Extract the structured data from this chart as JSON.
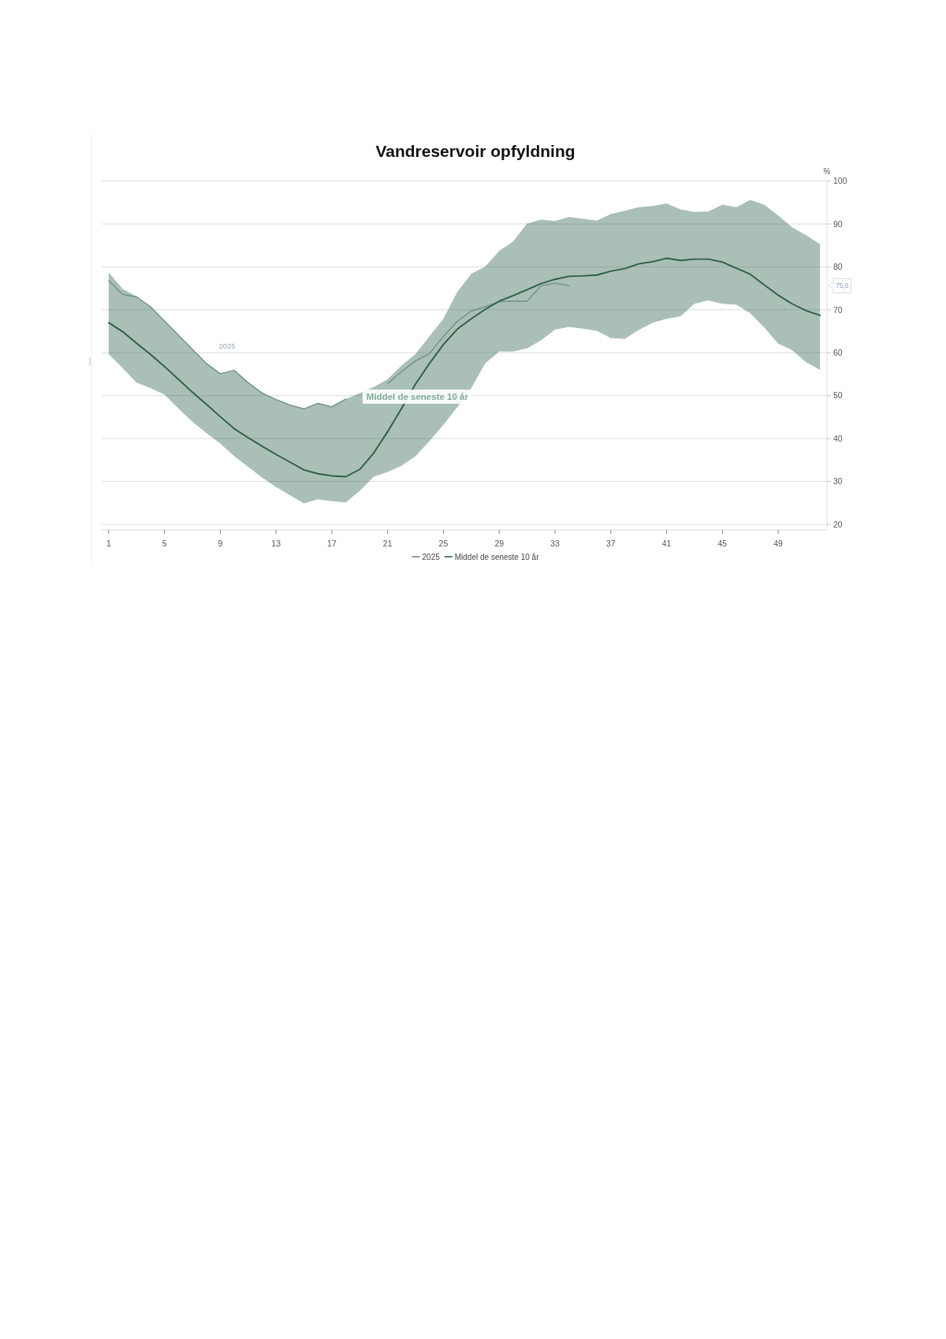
{
  "chart_data": {
    "type": "line",
    "title": "Vandreservoir opfyldning",
    "ylabel": "%",
    "x": [
      1,
      2,
      3,
      4,
      5,
      6,
      7,
      8,
      9,
      10,
      11,
      12,
      13,
      14,
      15,
      16,
      17,
      18,
      19,
      20,
      21,
      22,
      23,
      24,
      25,
      26,
      27,
      28,
      29,
      30,
      31,
      32,
      33,
      34,
      35,
      36,
      37,
      38,
      39,
      40,
      41,
      42,
      43,
      44,
      45,
      46,
      47,
      48,
      49,
      50,
      51,
      52
    ],
    "xlim": [
      0.5,
      52.5
    ],
    "xticks": [
      1,
      5,
      9,
      13,
      17,
      21,
      25,
      29,
      33,
      37,
      41,
      45,
      49
    ],
    "ylim": [
      18.7,
      100
    ],
    "yticks": [
      20,
      30,
      40,
      50,
      60,
      70,
      80,
      90,
      100
    ],
    "grid": "y",
    "legend": "bottom",
    "annotations": [
      "75,6"
    ],
    "series": [
      {
        "name": "2025",
        "color": "#6f8f8c",
        "values": [
          76.8,
          73.6,
          73.0,
          70.7,
          67.4,
          64.1,
          60.8,
          57.5,
          55.1,
          55.9,
          53.0,
          50.6,
          49.1,
          47.8,
          46.9,
          48.2,
          47.4,
          49.2,
          null,
          null,
          52.8,
          55.6,
          58.1,
          59.8,
          63.8,
          67.3,
          69.7,
          70.7,
          71.9,
          72.0,
          72.0,
          75.6,
          76.2,
          75.6,
          null,
          null,
          null,
          null,
          null,
          null,
          null,
          null,
          null,
          null,
          null,
          null,
          null,
          null,
          null,
          null,
          null,
          null
        ]
      },
      {
        "name": "Middel de seneste 10 år",
        "color": "#2b5e47",
        "values": [
          67.0,
          64.9,
          62.2,
          59.6,
          56.8,
          53.8,
          50.8,
          48.0,
          45.1,
          42.3,
          40.2,
          38.2,
          36.3,
          34.5,
          32.7,
          31.8,
          31.3,
          31.1,
          32.8,
          36.6,
          41.6,
          47.0,
          52.7,
          57.5,
          61.9,
          65.5,
          67.9,
          70.1,
          72.0,
          73.3,
          74.7,
          76.1,
          77.1,
          77.8,
          77.9,
          78.1,
          79.0,
          79.6,
          80.7,
          81.2,
          82.0,
          81.5,
          81.8,
          81.8,
          81.1,
          79.7,
          78.3,
          75.8,
          73.4,
          71.4,
          69.8,
          68.7
        ],
        "lower": [
          59.7,
          56.4,
          53.0,
          51.8,
          50.2,
          47.0,
          43.9,
          41.3,
          38.8,
          35.9,
          33.4,
          30.9,
          28.7,
          26.8,
          24.9,
          25.8,
          25.4,
          25.1,
          27.8,
          31.1,
          32.2,
          33.7,
          35.9,
          39.4,
          43.2,
          47.3,
          51.8,
          57.5,
          60.3,
          60.3,
          61.0,
          62.9,
          65.4,
          66.0,
          65.6,
          65.1,
          63.4,
          63.2,
          65.3,
          67.0,
          67.9,
          68.5,
          71.4,
          72.2,
          71.4,
          71.2,
          69.2,
          65.9,
          62.1,
          60.6,
          57.8,
          56.0
        ],
        "upper": [
          78.7,
          74.9,
          73.1,
          70.7,
          67.4,
          64.1,
          60.8,
          57.5,
          55.1,
          55.9,
          53.0,
          50.6,
          49.1,
          47.8,
          46.9,
          48.2,
          47.4,
          49.2,
          50.6,
          52.0,
          53.8,
          57.0,
          59.7,
          63.8,
          67.9,
          74.2,
          78.4,
          80.1,
          83.7,
          85.9,
          90.1,
          91.0,
          90.7,
          91.6,
          91.2,
          90.8,
          92.3,
          93.1,
          93.9,
          94.2,
          94.8,
          93.4,
          92.8,
          92.9,
          94.5,
          93.9,
          95.6,
          94.5,
          92.0,
          89.2,
          87.4,
          85.3
        ]
      }
    ]
  }
}
